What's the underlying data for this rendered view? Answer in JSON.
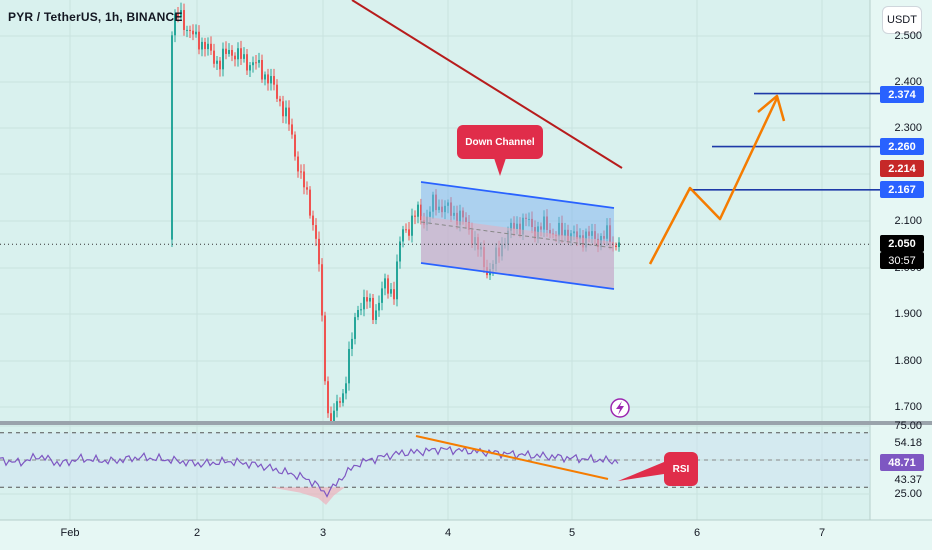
{
  "chart": {
    "title": "PYR / TetherUS, 1h, BINANCE",
    "currency": "USDT",
    "price_ticks": [
      "2.500",
      "2.400",
      "2.300",
      "2.100",
      "2.000",
      "1.900",
      "1.800",
      "1.700"
    ],
    "time_ticks": [
      "Feb",
      "2",
      "3",
      "4",
      "5",
      "6",
      "7"
    ],
    "price_badges": [
      {
        "label": "2.374",
        "color": "#2962ff"
      },
      {
        "label": "2.260",
        "color": "#2962ff"
      },
      {
        "label": "2.214",
        "color": "#c62828"
      },
      {
        "label": "2.167",
        "color": "#2962ff"
      },
      {
        "label": "2.050",
        "color": "#000000"
      }
    ],
    "countdown": "30:57",
    "target_levels": [
      2.374,
      2.26,
      2.167
    ],
    "current_price": 2.05,
    "annotations": {
      "channel": "Down Channel",
      "rsi": "RSI"
    }
  },
  "rsi": {
    "ticks": [
      "75.00",
      "54.18",
      "43.37",
      "25.00"
    ],
    "value_badge": {
      "label": "48.71",
      "color": "#7e57c2"
    }
  }
}
